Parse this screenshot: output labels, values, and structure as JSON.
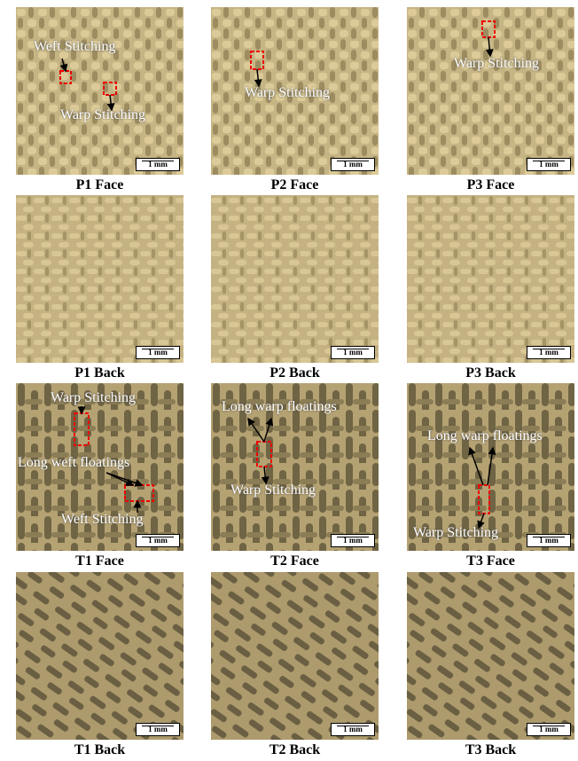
{
  "panels": [
    {
      "caption": "P1 Face",
      "scale": "1 mm",
      "annotations": [
        "Weft Stitching",
        "Warp Stitching"
      ]
    },
    {
      "caption": "P2 Face",
      "scale": "1 mm",
      "annotations": [
        "Warp Stitching"
      ]
    },
    {
      "caption": "P3 Face",
      "scale": "1 mm",
      "annotations": [
        "Warp Stitching"
      ]
    },
    {
      "caption": "P1 Back",
      "scale": "1 mm",
      "annotations": []
    },
    {
      "caption": "P2 Back",
      "scale": "1 mm",
      "annotations": []
    },
    {
      "caption": "P3 Back",
      "scale": "1 mm",
      "annotations": []
    },
    {
      "caption": "T1 Face",
      "scale": "1 mm",
      "annotations": [
        "Warp Stitching",
        "Long weft floatings",
        "Weft Stitching"
      ]
    },
    {
      "caption": "T2 Face",
      "scale": "1 mm",
      "annotations": [
        "Long warp floatings",
        "Warp Stitching"
      ]
    },
    {
      "caption": "T3 Face",
      "scale": "1 mm",
      "annotations": [
        "Long warp floatings",
        "Warp Stitching"
      ]
    },
    {
      "caption": "T1 Back",
      "scale": "1 mm",
      "annotations": []
    },
    {
      "caption": "T2 Back",
      "scale": "1 mm",
      "annotations": []
    },
    {
      "caption": "T3 Back",
      "scale": "1 mm",
      "annotations": []
    }
  ]
}
